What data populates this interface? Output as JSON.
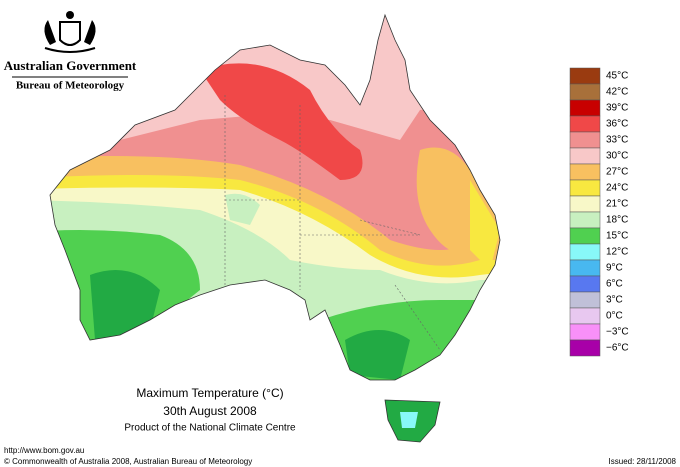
{
  "header": {
    "agency": "Australian Government",
    "bureau": "Bureau of Meteorology"
  },
  "map": {
    "title": "Maximum Temperature (°C)",
    "date": "30th August 2008",
    "product": "Product of the National Climate Centre"
  },
  "legend": [
    {
      "label": "45°C",
      "color": "#9a3b10"
    },
    {
      "label": "42°C",
      "color": "#a8703a"
    },
    {
      "label": "39°C",
      "color": "#c80000"
    },
    {
      "label": "36°C",
      "color": "#f04848"
    },
    {
      "label": "33°C",
      "color": "#f09090"
    },
    {
      "label": "30°C",
      "color": "#f8c8c8"
    },
    {
      "label": "27°C",
      "color": "#f8c060"
    },
    {
      "label": "24°C",
      "color": "#f8e840"
    },
    {
      "label": "21°C",
      "color": "#f8f8c8"
    },
    {
      "label": "18°C",
      "color": "#c8f0c0"
    },
    {
      "label": "15°C",
      "color": "#50d050"
    },
    {
      "label": "12°C",
      "color": "#88f8f8"
    },
    {
      "label": "9°C",
      "color": "#48b8f0"
    },
    {
      "label": "6°C",
      "color": "#5878f0"
    },
    {
      "label": "3°C",
      "color": "#c0c0d8"
    },
    {
      "label": "0°C",
      "color": "#e8c8f0"
    },
    {
      "label": "−3°C",
      "color": "#f890f8"
    },
    {
      "label": "−6°C",
      "color": "#a800a8"
    }
  ],
  "footer": {
    "url": "http://www.bom.gov.au",
    "copyright": "© Commonwealth of Australia 2008, Australian Bureau of Meteorology",
    "issued": "Issued: 28/11/2008"
  }
}
